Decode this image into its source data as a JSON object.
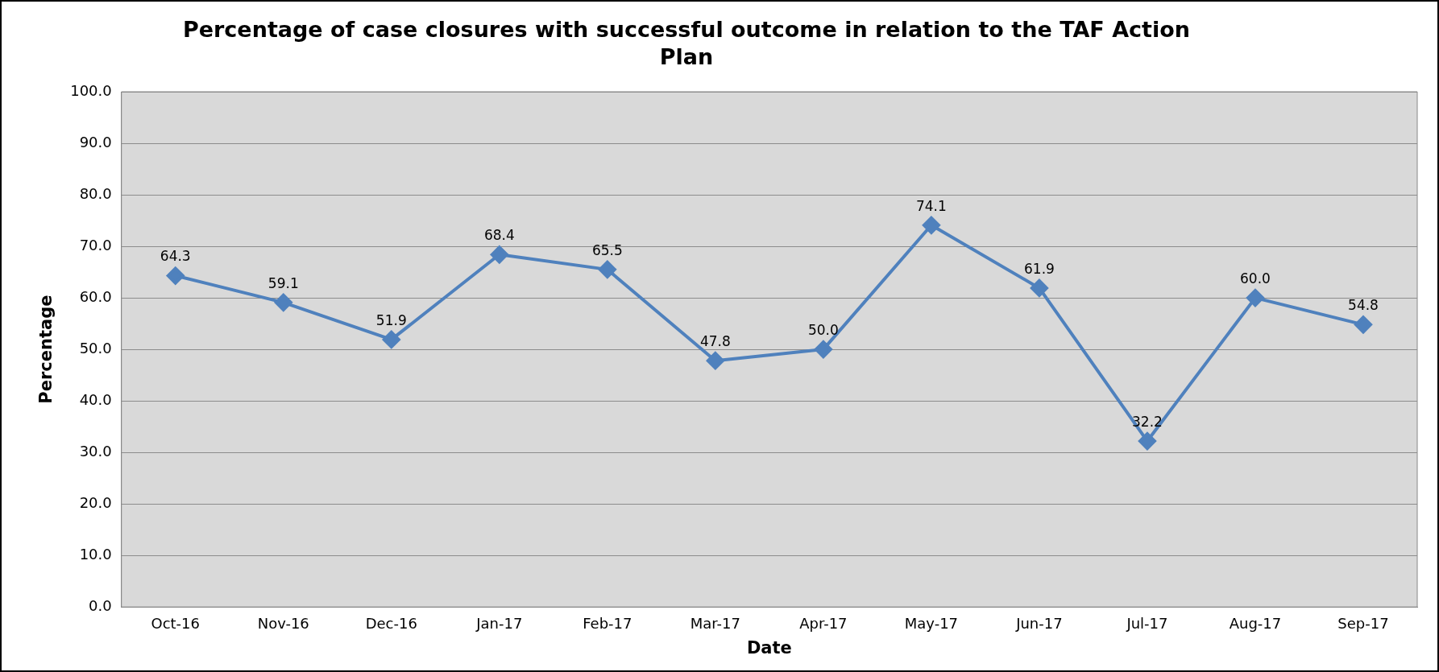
{
  "chart_data": {
    "type": "line",
    "title": "Percentage of case closures with successful outcome in relation to the TAF Action Plan",
    "xlabel": "Date",
    "ylabel": "Percentage",
    "categories": [
      "Oct-16",
      "Nov-16",
      "Dec-16",
      "Jan-17",
      "Feb-17",
      "Mar-17",
      "Apr-17",
      "May-17",
      "Jun-17",
      "Jul-17",
      "Aug-17",
      "Sep-17"
    ],
    "series": [
      {
        "color": "#4f81bd",
        "values": [
          64.3,
          59.1,
          51.9,
          68.4,
          65.5,
          47.8,
          50.0,
          74.1,
          61.9,
          32.2,
          60.0,
          54.8
        ],
        "value_labels": [
          "64.3",
          "59.1",
          "51.9",
          "68.4",
          "65.5",
          "47.8",
          "50.0",
          "74.1",
          "61.9",
          "32.2",
          "60.0",
          "54.8"
        ]
      }
    ],
    "ylim": [
      0,
      100
    ],
    "yticks": [
      {
        "value": 0,
        "label": "0.0"
      },
      {
        "value": 10,
        "label": "10.0"
      },
      {
        "value": 20,
        "label": "20.0"
      },
      {
        "value": 30,
        "label": "30.0"
      },
      {
        "value": 40,
        "label": "40.0"
      },
      {
        "value": 50,
        "label": "50.0"
      },
      {
        "value": 60,
        "label": "60.0"
      },
      {
        "value": 70,
        "label": "70.0"
      },
      {
        "value": 80,
        "label": "80.0"
      },
      {
        "value": 90,
        "label": "90.0"
      },
      {
        "value": 100,
        "label": "100.0"
      }
    ],
    "grid": "y",
    "marker": "diamond",
    "line_style": "solid",
    "legend": false
  }
}
